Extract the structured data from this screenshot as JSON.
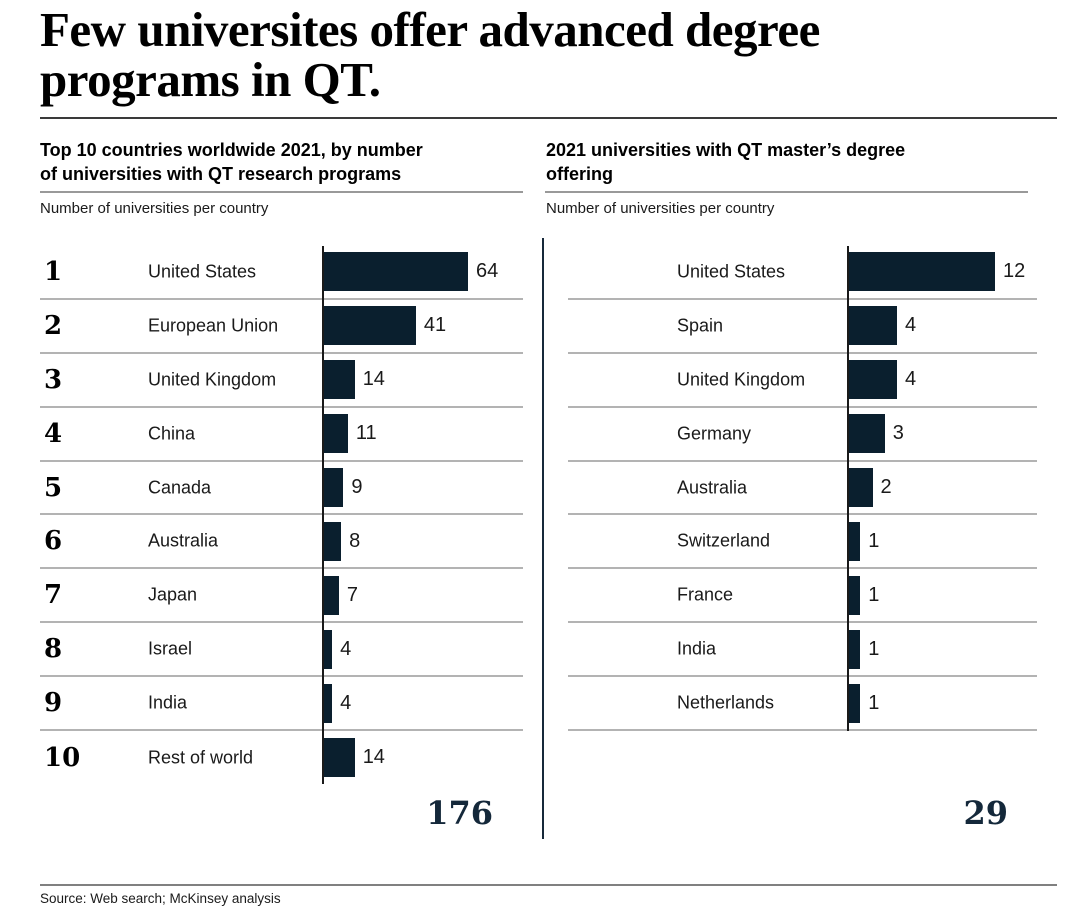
{
  "page": {
    "title": "Few universites offer advanced degree\nprograms in QT.",
    "source": "Source: Web search; McKinsey analysis"
  },
  "colors": {
    "bar": "#0a1f2e",
    "total_text": "#14283a",
    "axis": "#1a1a1a",
    "divider": "#17293a",
    "row_separator": "#b3b3b3",
    "header_rule": "#999999",
    "title_rule": "#3a3a3a",
    "source_rule": "#808080"
  },
  "chart_data": [
    {
      "type": "bar",
      "orientation": "horizontal",
      "title": "Top 10 countries worldwide 2021, by number\nof universities with QT research programs",
      "unit_label": "Number of universities per country",
      "ranks": [
        "1",
        "2",
        "3",
        "4",
        "5",
        "6",
        "7",
        "8",
        "9",
        "10"
      ],
      "categories": [
        "United States",
        "European Union",
        "United Kingdom",
        "China",
        "Canada",
        "Australia",
        "Japan",
        "Israel",
        "India",
        "Rest of world"
      ],
      "values": [
        64,
        41,
        14,
        11,
        9,
        8,
        7,
        4,
        4,
        14
      ],
      "value_labels": true,
      "total": "176",
      "xlim": [
        0,
        88
      ],
      "grid": "horizontal-row-separators",
      "legend": "none"
    },
    {
      "type": "bar",
      "orientation": "horizontal",
      "title": "2021 universities with QT master’s degree\noffering",
      "unit_label": "Number of universities per country",
      "categories": [
        "United States",
        "Spain",
        "United Kingdom",
        "Germany",
        "Australia",
        "Switzerland",
        "France",
        "India",
        "Netherlands"
      ],
      "values": [
        12,
        4,
        4,
        3,
        2,
        1,
        1,
        1,
        1
      ],
      "value_labels": true,
      "total": "29",
      "xlim": [
        0,
        16
      ],
      "grid": "horizontal-row-separators",
      "legend": "none"
    }
  ]
}
